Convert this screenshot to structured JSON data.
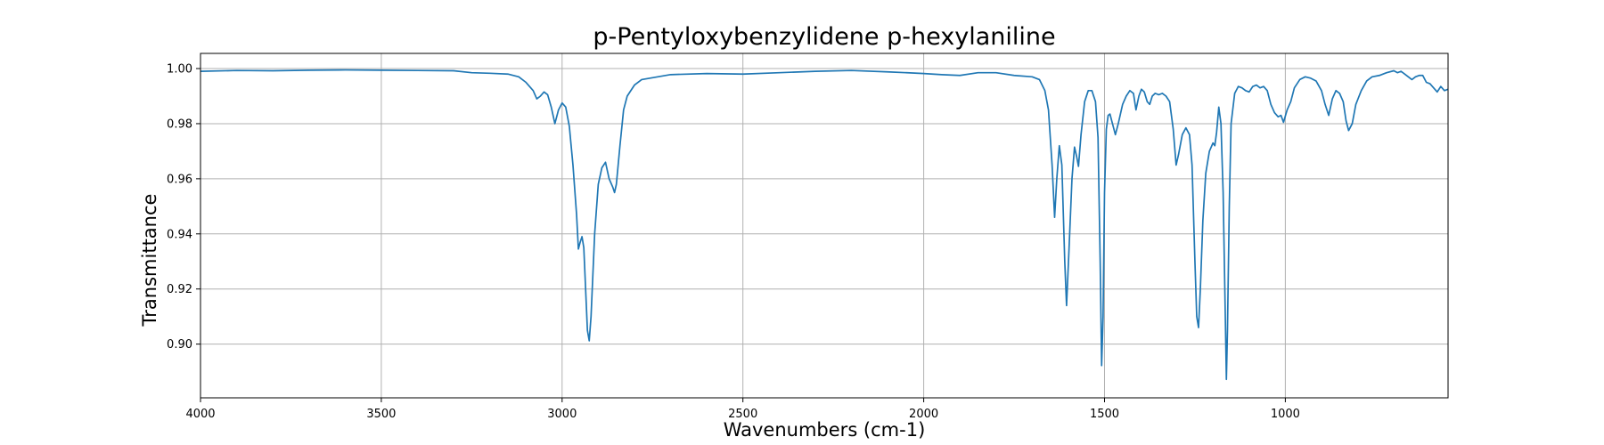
{
  "chart_data": {
    "type": "line",
    "title": "p-Pentyloxybenzylidene p-hexylaniline",
    "xlabel": "Wavenumbers (cm-1)",
    "ylabel": "Transmittance",
    "xlim": [
      4000,
      550
    ],
    "ylim": [
      0.8805,
      1.0055
    ],
    "x_reversed": true,
    "grid": true,
    "x_ticks": [
      4000,
      3500,
      3000,
      2500,
      2000,
      1500,
      1000
    ],
    "x_tick_labels": [
      "4000",
      "3500",
      "3000",
      "2500",
      "2000",
      "1500",
      "1000"
    ],
    "y_ticks": [
      0.9,
      0.92,
      0.94,
      0.96,
      0.98,
      1.0
    ],
    "y_tick_labels": [
      "0.90",
      "0.92",
      "0.94",
      "0.96",
      "0.98",
      "1.00"
    ],
    "series": [
      {
        "color": "#1f77b4",
        "points": [
          [
            4000,
            0.999
          ],
          [
            3900,
            0.9993
          ],
          [
            3800,
            0.9992
          ],
          [
            3700,
            0.9994
          ],
          [
            3600,
            0.9995
          ],
          [
            3500,
            0.9994
          ],
          [
            3400,
            0.9993
          ],
          [
            3300,
            0.9992
          ],
          [
            3250,
            0.9985
          ],
          [
            3200,
            0.9983
          ],
          [
            3150,
            0.998
          ],
          [
            3120,
            0.997
          ],
          [
            3100,
            0.995
          ],
          [
            3080,
            0.992
          ],
          [
            3070,
            0.989
          ],
          [
            3060,
            0.99
          ],
          [
            3050,
            0.9915
          ],
          [
            3040,
            0.9905
          ],
          [
            3030,
            0.986
          ],
          [
            3020,
            0.98
          ],
          [
            3010,
            0.985
          ],
          [
            3000,
            0.9875
          ],
          [
            2990,
            0.986
          ],
          [
            2980,
            0.979
          ],
          [
            2970,
            0.965
          ],
          [
            2960,
            0.947
          ],
          [
            2955,
            0.9345
          ],
          [
            2950,
            0.937
          ],
          [
            2945,
            0.939
          ],
          [
            2940,
            0.935
          ],
          [
            2935,
            0.92
          ],
          [
            2930,
            0.905
          ],
          [
            2925,
            0.9012
          ],
          [
            2920,
            0.91
          ],
          [
            2915,
            0.925
          ],
          [
            2910,
            0.94
          ],
          [
            2900,
            0.958
          ],
          [
            2890,
            0.964
          ],
          [
            2880,
            0.966
          ],
          [
            2870,
            0.96
          ],
          [
            2860,
            0.957
          ],
          [
            2855,
            0.955
          ],
          [
            2850,
            0.958
          ],
          [
            2840,
            0.972
          ],
          [
            2830,
            0.985
          ],
          [
            2820,
            0.99
          ],
          [
            2800,
            0.994
          ],
          [
            2780,
            0.996
          ],
          [
            2700,
            0.9978
          ],
          [
            2600,
            0.9982
          ],
          [
            2500,
            0.998
          ],
          [
            2400,
            0.9985
          ],
          [
            2300,
            0.999
          ],
          [
            2200,
            0.9993
          ],
          [
            2100,
            0.9988
          ],
          [
            2000,
            0.9982
          ],
          [
            1950,
            0.9978
          ],
          [
            1900,
            0.9975
          ],
          [
            1850,
            0.9985
          ],
          [
            1800,
            0.9985
          ],
          [
            1750,
            0.9975
          ],
          [
            1700,
            0.997
          ],
          [
            1680,
            0.996
          ],
          [
            1665,
            0.992
          ],
          [
            1655,
            0.985
          ],
          [
            1645,
            0.965
          ],
          [
            1638,
            0.946
          ],
          [
            1632,
            0.96
          ],
          [
            1625,
            0.972
          ],
          [
            1618,
            0.965
          ],
          [
            1610,
            0.93
          ],
          [
            1605,
            0.914
          ],
          [
            1598,
            0.935
          ],
          [
            1590,
            0.96
          ],
          [
            1583,
            0.9715
          ],
          [
            1577,
            0.968
          ],
          [
            1572,
            0.9645
          ],
          [
            1565,
            0.976
          ],
          [
            1555,
            0.988
          ],
          [
            1545,
            0.992
          ],
          [
            1535,
            0.992
          ],
          [
            1525,
            0.988
          ],
          [
            1518,
            0.975
          ],
          [
            1512,
            0.93
          ],
          [
            1508,
            0.8922
          ],
          [
            1504,
            0.91
          ],
          [
            1500,
            0.955
          ],
          [
            1495,
            0.978
          ],
          [
            1490,
            0.983
          ],
          [
            1485,
            0.9835
          ],
          [
            1478,
            0.98
          ],
          [
            1470,
            0.976
          ],
          [
            1462,
            0.98
          ],
          [
            1450,
            0.987
          ],
          [
            1440,
            0.99
          ],
          [
            1430,
            0.992
          ],
          [
            1420,
            0.991
          ],
          [
            1413,
            0.985
          ],
          [
            1405,
            0.99
          ],
          [
            1398,
            0.9925
          ],
          [
            1390,
            0.9915
          ],
          [
            1382,
            0.988
          ],
          [
            1375,
            0.987
          ],
          [
            1368,
            0.99
          ],
          [
            1360,
            0.991
          ],
          [
            1350,
            0.9905
          ],
          [
            1340,
            0.991
          ],
          [
            1330,
            0.99
          ],
          [
            1320,
            0.988
          ],
          [
            1310,
            0.978
          ],
          [
            1302,
            0.965
          ],
          [
            1295,
            0.969
          ],
          [
            1285,
            0.976
          ],
          [
            1275,
            0.9785
          ],
          [
            1265,
            0.976
          ],
          [
            1258,
            0.965
          ],
          [
            1250,
            0.93
          ],
          [
            1245,
            0.91
          ],
          [
            1240,
            0.906
          ],
          [
            1235,
            0.92
          ],
          [
            1228,
            0.945
          ],
          [
            1220,
            0.962
          ],
          [
            1210,
            0.97
          ],
          [
            1200,
            0.973
          ],
          [
            1195,
            0.972
          ],
          [
            1190,
            0.977
          ],
          [
            1184,
            0.986
          ],
          [
            1178,
            0.98
          ],
          [
            1172,
            0.955
          ],
          [
            1166,
            0.91
          ],
          [
            1163,
            0.8872
          ],
          [
            1160,
            0.905
          ],
          [
            1155,
            0.95
          ],
          [
            1150,
            0.98
          ],
          [
            1140,
            0.991
          ],
          [
            1130,
            0.9935
          ],
          [
            1120,
            0.993
          ],
          [
            1110,
            0.992
          ],
          [
            1100,
            0.9915
          ],
          [
            1090,
            0.9935
          ],
          [
            1080,
            0.994
          ],
          [
            1070,
            0.993
          ],
          [
            1060,
            0.9935
          ],
          [
            1050,
            0.992
          ],
          [
            1040,
            0.987
          ],
          [
            1030,
            0.984
          ],
          [
            1020,
            0.9825
          ],
          [
            1012,
            0.983
          ],
          [
            1005,
            0.9805
          ],
          [
            995,
            0.985
          ],
          [
            985,
            0.988
          ],
          [
            975,
            0.993
          ],
          [
            960,
            0.996
          ],
          [
            945,
            0.997
          ],
          [
            930,
            0.9965
          ],
          [
            915,
            0.9955
          ],
          [
            900,
            0.992
          ],
          [
            890,
            0.987
          ],
          [
            880,
            0.983
          ],
          [
            870,
            0.989
          ],
          [
            860,
            0.992
          ],
          [
            850,
            0.991
          ],
          [
            840,
            0.988
          ],
          [
            832,
            0.981
          ],
          [
            825,
            0.9775
          ],
          [
            815,
            0.98
          ],
          [
            805,
            0.987
          ],
          [
            790,
            0.992
          ],
          [
            775,
            0.9955
          ],
          [
            760,
            0.997
          ],
          [
            740,
            0.9975
          ],
          [
            720,
            0.9985
          ],
          [
            700,
            0.9992
          ],
          [
            690,
            0.9985
          ],
          [
            680,
            0.999
          ],
          [
            670,
            0.998
          ],
          [
            660,
            0.997
          ],
          [
            650,
            0.996
          ],
          [
            640,
            0.997
          ],
          [
            630,
            0.9975
          ],
          [
            620,
            0.9975
          ],
          [
            610,
            0.995
          ],
          [
            600,
            0.9945
          ],
          [
            590,
            0.993
          ],
          [
            580,
            0.9915
          ],
          [
            570,
            0.9935
          ],
          [
            560,
            0.992
          ],
          [
            550,
            0.9925
          ]
        ]
      }
    ]
  }
}
